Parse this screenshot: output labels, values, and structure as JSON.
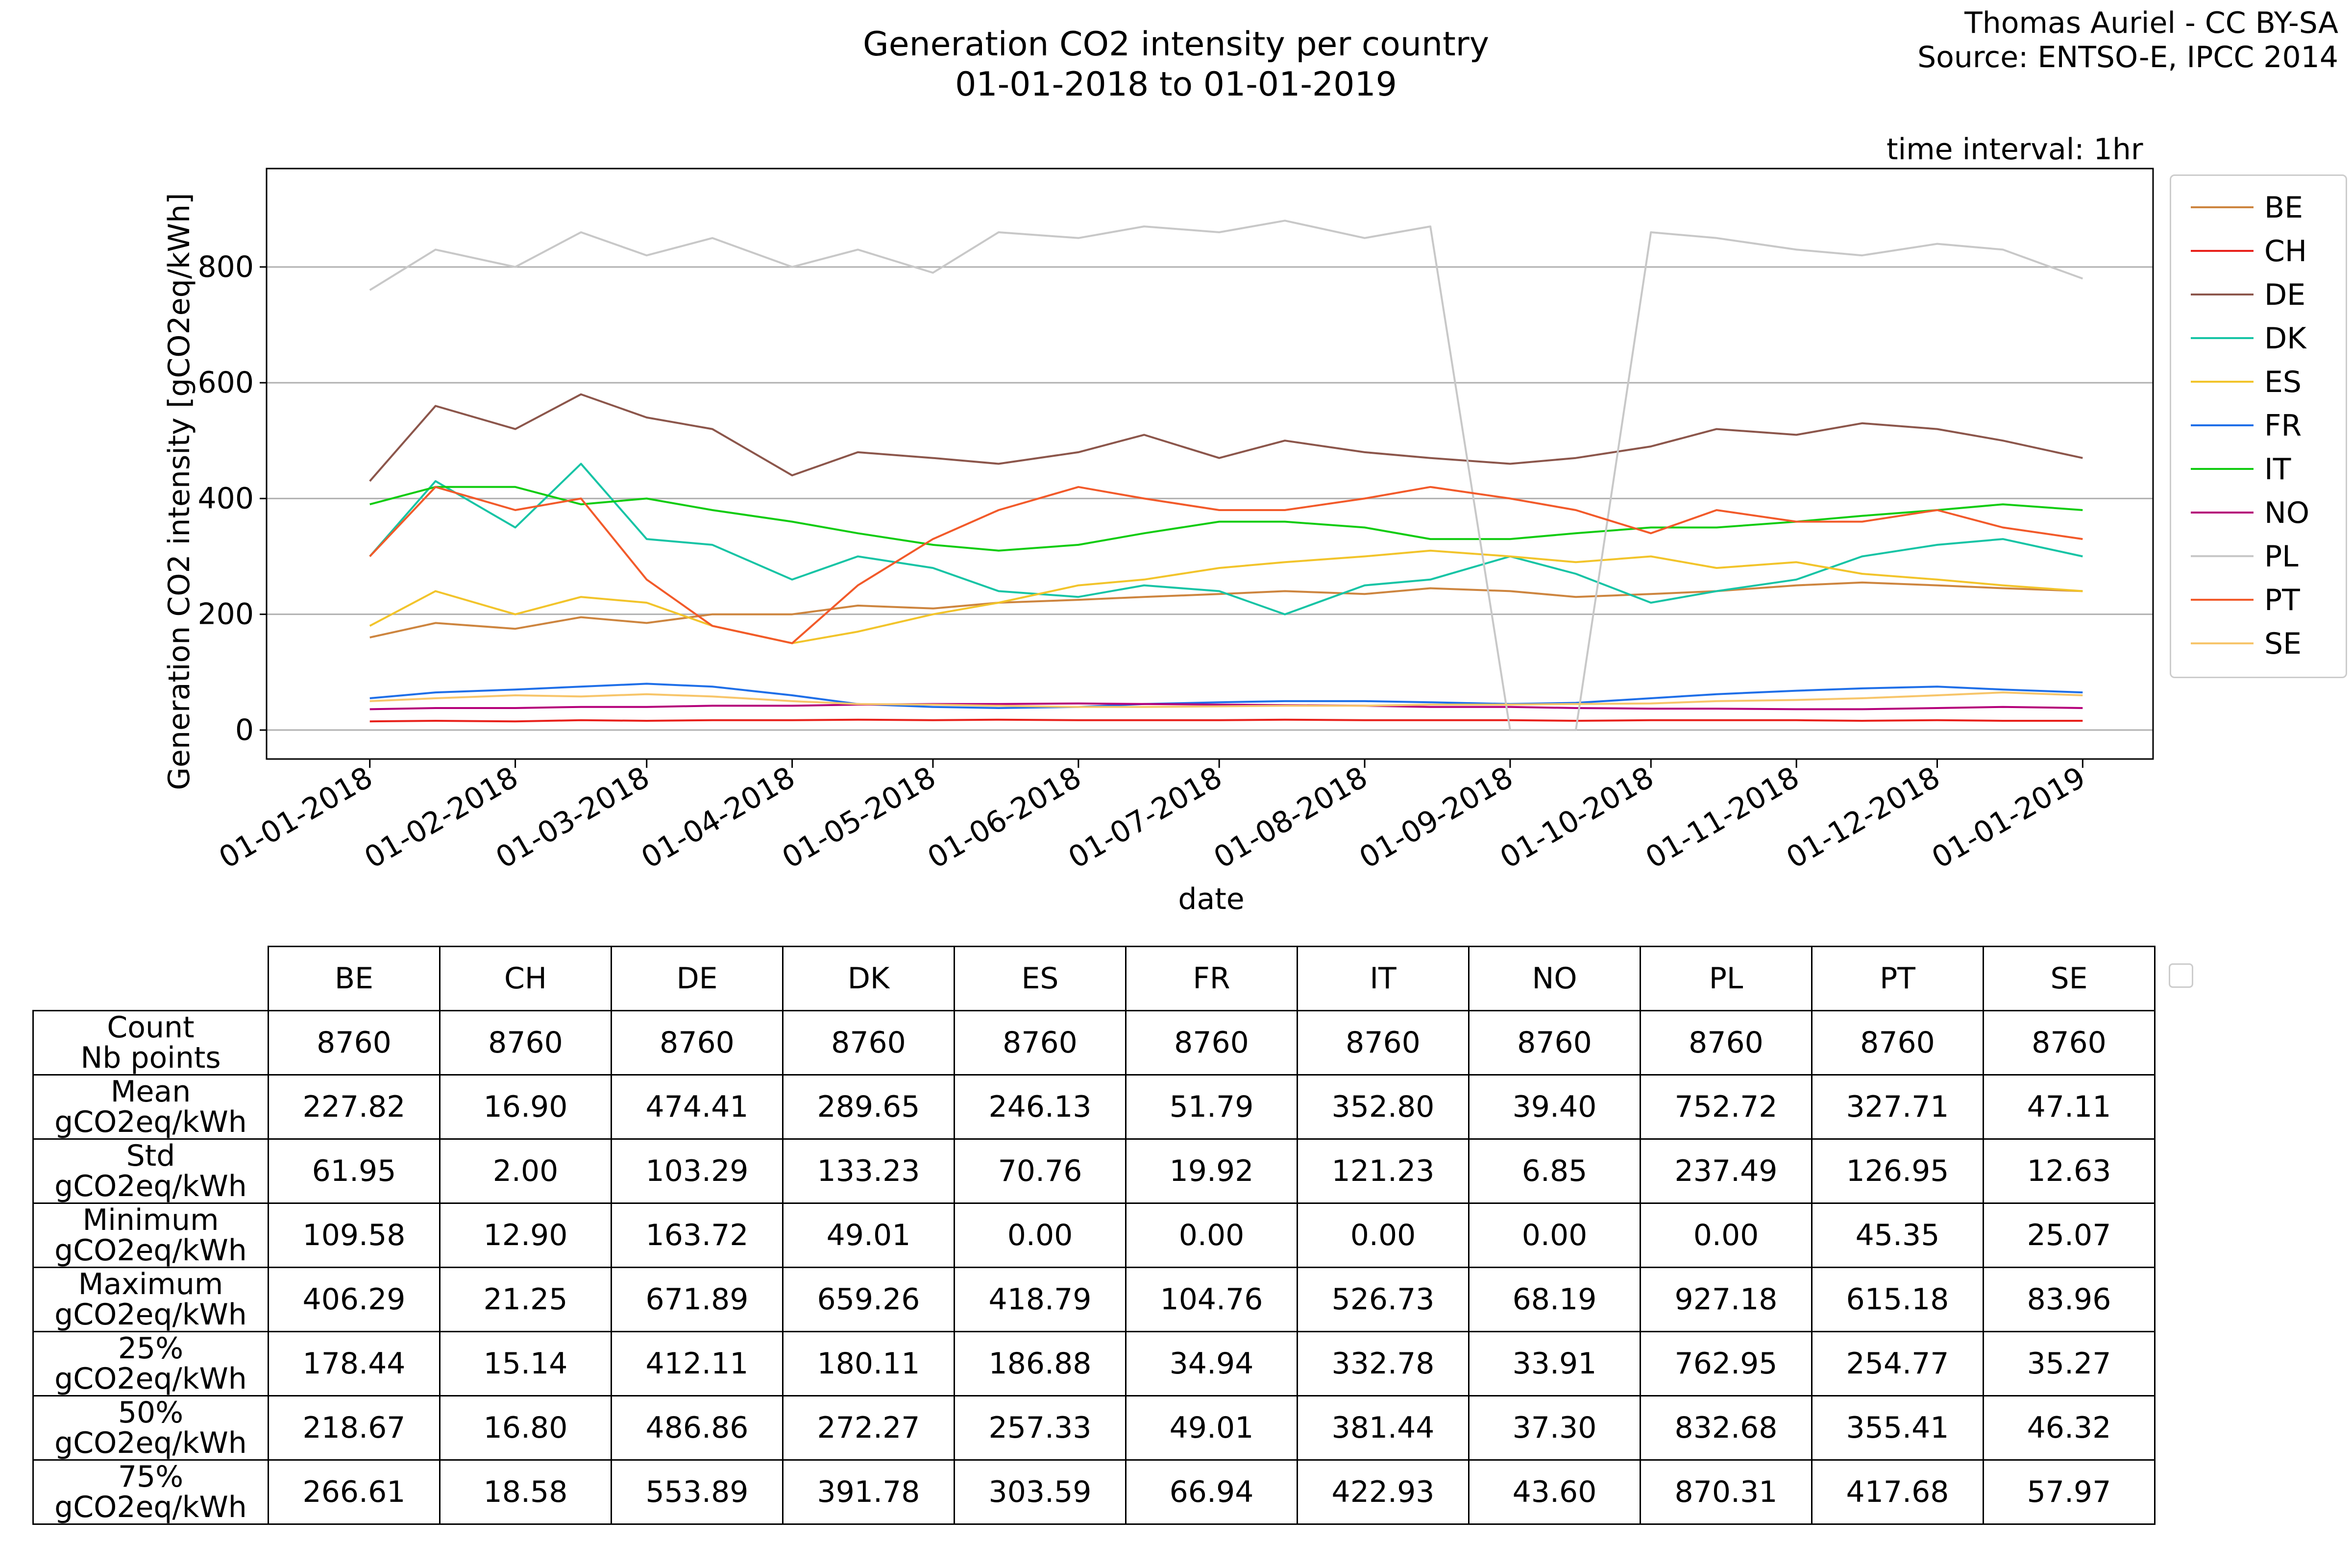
{
  "header": {
    "title_line1": "Generation CO2 intensity per country",
    "title_line2": "01-01-2018 to 01-01-2019",
    "credit_line1": "Thomas Auriel - CC BY-SA",
    "credit_line2": "Source: ENTSO-E, IPCC 2014",
    "interval": "time interval: 1hr"
  },
  "chart_data": {
    "type": "line",
    "title": "Generation CO2 intensity per country",
    "subtitle": "01-01-2018 to 01-01-2019",
    "xlabel": "date",
    "ylabel": "Generation CO2 intensity [gCO2eq/kWh]",
    "ylim": [
      -50,
      970
    ],
    "yticks": [
      0,
      200,
      400,
      600,
      800
    ],
    "xlim": [
      "2017-12-10",
      "2019-01-16"
    ],
    "xticks": [
      "01-01-2018",
      "01-02-2018",
      "01-03-2018",
      "01-04-2018",
      "01-05-2018",
      "01-06-2018",
      "01-07-2018",
      "01-08-2018",
      "01-09-2018",
      "01-10-2018",
      "01-11-2018",
      "01-12-2018",
      "01-01-2019"
    ],
    "grid": "y",
    "legend_position": "right",
    "x": [
      "2018-01-01",
      "2018-01-15",
      "2018-02-01",
      "2018-02-15",
      "2018-03-01",
      "2018-03-15",
      "2018-04-01",
      "2018-04-15",
      "2018-05-01",
      "2018-05-15",
      "2018-06-01",
      "2018-06-15",
      "2018-07-01",
      "2018-07-15",
      "2018-08-01",
      "2018-08-15",
      "2018-09-01",
      "2018-09-15",
      "2018-10-01",
      "2018-10-15",
      "2018-11-01",
      "2018-11-15",
      "2018-12-01",
      "2018-12-15",
      "2019-01-01"
    ],
    "series": [
      {
        "name": "BE",
        "color": "#cd853f",
        "values": [
          160,
          185,
          175,
          195,
          185,
          200,
          200,
          215,
          210,
          220,
          225,
          230,
          235,
          240,
          235,
          245,
          240,
          230,
          235,
          240,
          250,
          255,
          250,
          245,
          240
        ]
      },
      {
        "name": "CH",
        "color": "#e8211b",
        "values": [
          15,
          16,
          15,
          17,
          16,
          17,
          17,
          18,
          17,
          18,
          17,
          17,
          17,
          18,
          17,
          17,
          17,
          16,
          17,
          17,
          17,
          16,
          17,
          16,
          16
        ]
      },
      {
        "name": "DE",
        "color": "#8c564b",
        "values": [
          430,
          560,
          520,
          580,
          540,
          520,
          440,
          480,
          470,
          460,
          480,
          510,
          470,
          500,
          480,
          470,
          460,
          470,
          490,
          520,
          510,
          530,
          520,
          500,
          470
        ]
      },
      {
        "name": "DK",
        "color": "#17c4a5",
        "values": [
          300,
          430,
          350,
          460,
          330,
          320,
          260,
          300,
          280,
          240,
          230,
          250,
          240,
          200,
          250,
          260,
          300,
          270,
          220,
          240,
          260,
          300,
          320,
          330,
          300
        ]
      },
      {
        "name": "ES",
        "color": "#f2c42b",
        "values": [
          180,
          240,
          200,
          230,
          220,
          180,
          150,
          170,
          200,
          220,
          250,
          260,
          280,
          290,
          300,
          310,
          300,
          290,
          300,
          280,
          290,
          270,
          260,
          250,
          240
        ]
      },
      {
        "name": "FR",
        "color": "#1f6fe8",
        "values": [
          55,
          65,
          70,
          75,
          80,
          75,
          60,
          45,
          40,
          38,
          40,
          45,
          48,
          50,
          50,
          48,
          45,
          47,
          55,
          62,
          68,
          72,
          75,
          70,
          65
        ]
      },
      {
        "name": "IT",
        "color": "#11cc11",
        "values": [
          390,
          420,
          420,
          390,
          400,
          380,
          360,
          340,
          320,
          310,
          320,
          340,
          360,
          360,
          350,
          330,
          330,
          340,
          350,
          350,
          360,
          370,
          380,
          390,
          380
        ]
      },
      {
        "name": "NO",
        "color": "#b5007a",
        "values": [
          36,
          38,
          38,
          40,
          40,
          42,
          42,
          44,
          45,
          45,
          46,
          45,
          44,
          43,
          42,
          40,
          40,
          38,
          37,
          37,
          36,
          36,
          38,
          40,
          38
        ]
      },
      {
        "name": "PL",
        "color": "#c8c8c8",
        "values": [
          760,
          830,
          800,
          860,
          820,
          850,
          800,
          830,
          790,
          860,
          850,
          870,
          860,
          880,
          850,
          870,
          0,
          0,
          860,
          850,
          830,
          820,
          840,
          830,
          780
        ]
      },
      {
        "name": "PT",
        "color": "#f25a2a",
        "values": [
          300,
          420,
          380,
          400,
          260,
          180,
          150,
          250,
          330,
          380,
          420,
          400,
          380,
          380,
          400,
          420,
          400,
          380,
          340,
          380,
          360,
          360,
          380,
          350,
          330
        ]
      },
      {
        "name": "SE",
        "color": "#f7c56a",
        "values": [
          50,
          55,
          60,
          58,
          62,
          58,
          50,
          45,
          44,
          42,
          40,
          40,
          41,
          42,
          42,
          44,
          44,
          45,
          46,
          50,
          52,
          55,
          60,
          65,
          60
        ]
      }
    ]
  },
  "stats_table": {
    "columns": [
      "BE",
      "CH",
      "DE",
      "DK",
      "ES",
      "FR",
      "IT",
      "NO",
      "PL",
      "PT",
      "SE"
    ],
    "rows": [
      {
        "label1": "Count",
        "label2": "Nb points",
        "values": [
          "8760",
          "8760",
          "8760",
          "8760",
          "8760",
          "8760",
          "8760",
          "8760",
          "8760",
          "8760",
          "8760"
        ]
      },
      {
        "label1": "Mean",
        "label2": "gCO2eq/kWh",
        "values": [
          "227.82",
          "16.90",
          "474.41",
          "289.65",
          "246.13",
          "51.79",
          "352.80",
          "39.40",
          "752.72",
          "327.71",
          "47.11"
        ]
      },
      {
        "label1": "Std",
        "label2": "gCO2eq/kWh",
        "values": [
          "61.95",
          "2.00",
          "103.29",
          "133.23",
          "70.76",
          "19.92",
          "121.23",
          "6.85",
          "237.49",
          "126.95",
          "12.63"
        ]
      },
      {
        "label1": "Minimum",
        "label2": "gCO2eq/kWh",
        "values": [
          "109.58",
          "12.90",
          "163.72",
          "49.01",
          "0.00",
          "0.00",
          "0.00",
          "0.00",
          "0.00",
          "45.35",
          "25.07"
        ]
      },
      {
        "label1": "Maximum",
        "label2": "gCO2eq/kWh",
        "values": [
          "406.29",
          "21.25",
          "671.89",
          "659.26",
          "418.79",
          "104.76",
          "526.73",
          "68.19",
          "927.18",
          "615.18",
          "83.96"
        ]
      },
      {
        "label1": "25%",
        "label2": "gCO2eq/kWh",
        "values": [
          "178.44",
          "15.14",
          "412.11",
          "180.11",
          "186.88",
          "34.94",
          "332.78",
          "33.91",
          "762.95",
          "254.77",
          "35.27"
        ]
      },
      {
        "label1": "50%",
        "label2": "gCO2eq/kWh",
        "values": [
          "218.67",
          "16.80",
          "486.86",
          "272.27",
          "257.33",
          "49.01",
          "381.44",
          "37.30",
          "832.68",
          "355.41",
          "46.32"
        ]
      },
      {
        "label1": "75%",
        "label2": "gCO2eq/kWh",
        "values": [
          "266.61",
          "18.58",
          "553.89",
          "391.78",
          "303.59",
          "66.94",
          "422.93",
          "43.60",
          "870.31",
          "417.68",
          "57.97"
        ]
      }
    ]
  }
}
